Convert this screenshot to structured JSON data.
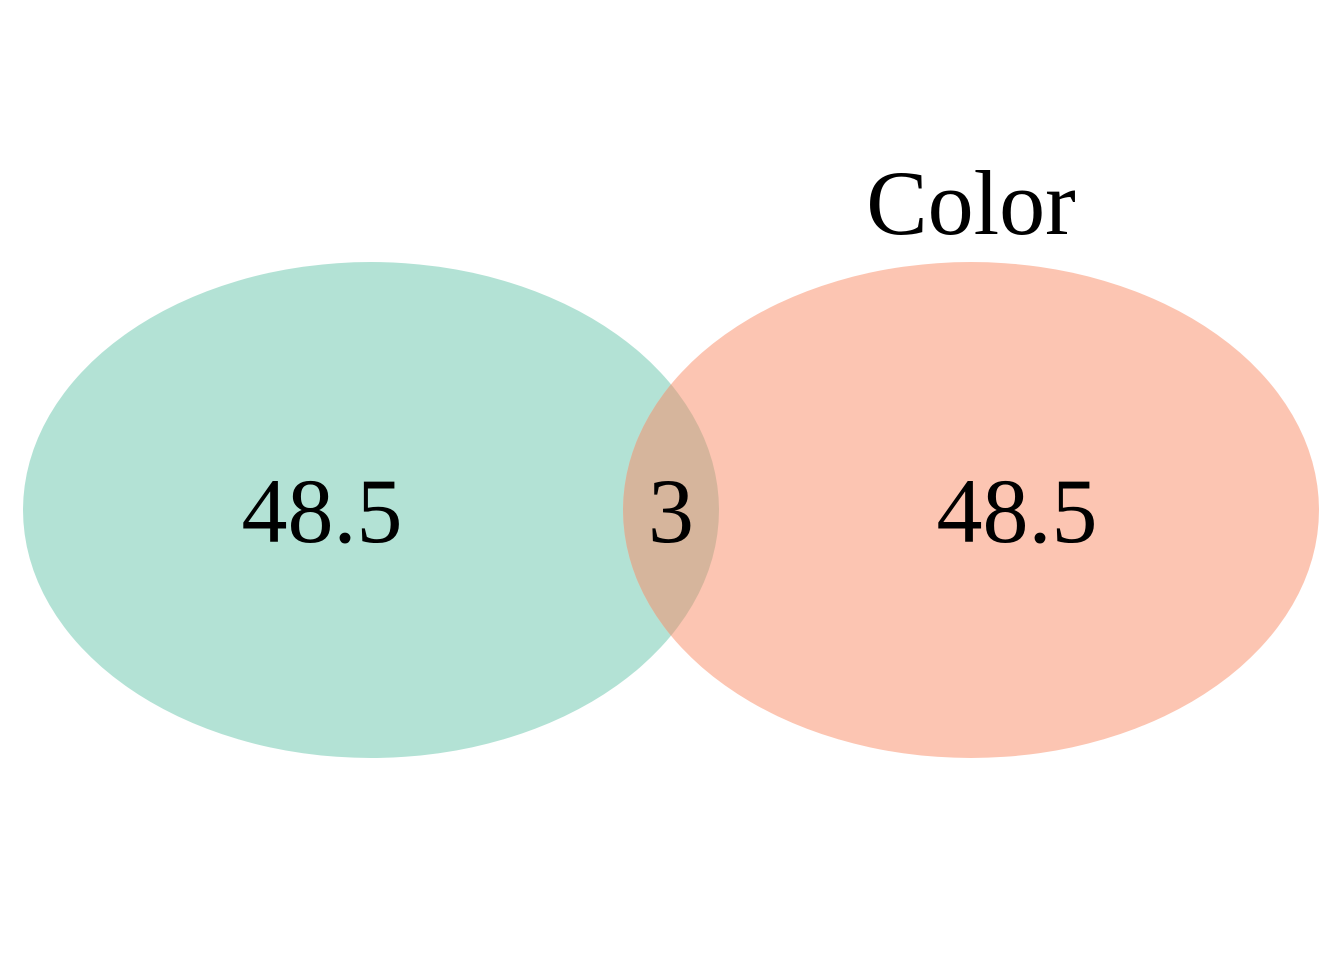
{
  "diagram": {
    "type": "venn",
    "sets": [
      {
        "label": "",
        "color": "#b3e2d5"
      },
      {
        "label": "Color",
        "color": "#fcc5b2"
      }
    ],
    "regions": {
      "left_only": "48.5",
      "intersection": "3",
      "right_only": "48.5"
    },
    "intersection_color": "#d6b59c"
  }
}
